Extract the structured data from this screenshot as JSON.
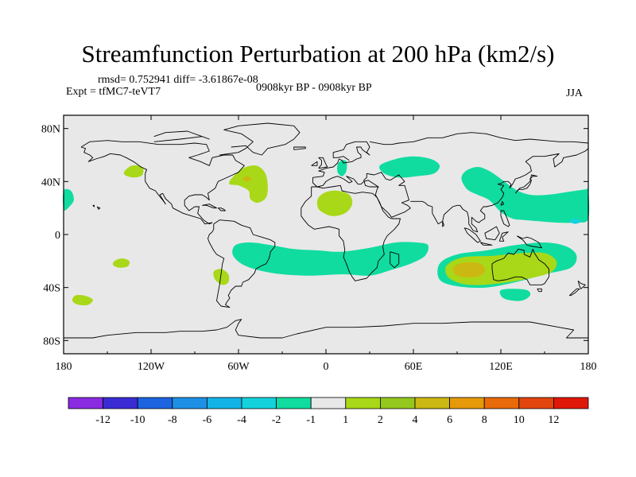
{
  "title": "Streamfunction Perturbation at 200 hPa (km2/s)",
  "stats": "rmsd= 0.752941 diff= -3.61867e-08",
  "experiment": "Expt = tfMC7-teVT7",
  "period": "0908kyr BP - 0908kyr BP",
  "season": "JJA",
  "colors": {
    "background": "#e8e8e8",
    "coast": "#000000",
    "frame": "#000000"
  },
  "chart_data": {
    "type": "heatmap",
    "title": "Streamfunction Perturbation at 200 hPa (km2/s)",
    "xlim": [
      -180,
      180
    ],
    "ylim": [
      -90,
      90
    ],
    "xticks": [
      {
        "value": -180,
        "label": "180"
      },
      {
        "value": -120,
        "label": "120W"
      },
      {
        "value": -60,
        "label": "60W"
      },
      {
        "value": 0,
        "label": "0"
      },
      {
        "value": 60,
        "label": "60E"
      },
      {
        "value": 120,
        "label": "120E"
      },
      {
        "value": 180,
        "label": "180"
      }
    ],
    "yticks": [
      {
        "value": 80,
        "label": "80N"
      },
      {
        "value": 40,
        "label": "40N"
      },
      {
        "value": 0,
        "label": "0"
      },
      {
        "value": -40,
        "label": "40S"
      },
      {
        "value": -80,
        "label": "80S"
      }
    ],
    "colorbar": {
      "colors": [
        "#8a2be2",
        "#3a2bd4",
        "#1c64e0",
        "#1e90e6",
        "#12b4e8",
        "#14d2dc",
        "#10dca0",
        "#e8e8e8",
        "#a8d818",
        "#94c81e",
        "#ccb812",
        "#e69a0a",
        "#e86a0a",
        "#e2460e",
        "#e01808"
      ],
      "labels": [
        "-12",
        "-10",
        "-8",
        "-6",
        "-4",
        "-2",
        "-1",
        "1",
        "2",
        "4",
        "6",
        "8",
        "10",
        "12"
      ]
    },
    "regions": [
      {
        "level": 1,
        "color": "#a8d818",
        "points": [
          [
            -65,
            42
          ],
          [
            -57,
            50
          ],
          [
            -48,
            52
          ],
          [
            -42,
            47
          ],
          [
            -40,
            38
          ],
          [
            -41,
            28
          ],
          [
            -47,
            24
          ],
          [
            -52,
            27
          ],
          [
            -53,
            33
          ],
          [
            -60,
            37
          ],
          [
            -66,
            38
          ]
        ]
      },
      {
        "level": 1,
        "color": "#a8d818",
        "points": [
          [
            -138,
            48
          ],
          [
            -133,
            52
          ],
          [
            -126,
            51
          ],
          [
            -126,
            45
          ],
          [
            -132,
            43
          ],
          [
            -138,
            45
          ]
        ]
      },
      {
        "level": -1,
        "color": "#10dca0",
        "points": [
          [
            -180,
            33
          ],
          [
            -175,
            33
          ],
          [
            -173,
            26
          ],
          [
            -177,
            20
          ],
          [
            -180,
            19
          ]
        ]
      },
      {
        "level": 1,
        "color": "#a8d818",
        "points": [
          [
            -5,
            28
          ],
          [
            0,
            32
          ],
          [
            8,
            33
          ],
          [
            16,
            30
          ],
          [
            18,
            23
          ],
          [
            13,
            16
          ],
          [
            4,
            14
          ],
          [
            -4,
            18
          ],
          [
            -6,
            23
          ]
        ]
      },
      {
        "level": -1,
        "color": "#10dca0",
        "points": [
          [
            8,
            53
          ],
          [
            11,
            56
          ],
          [
            14,
            55
          ],
          [
            14,
            48
          ],
          [
            11,
            44
          ],
          [
            8,
            47
          ]
        ]
      },
      {
        "level": -1,
        "color": "#10dca0",
        "points": [
          [
            37,
            52
          ],
          [
            48,
            57
          ],
          [
            60,
            59
          ],
          [
            72,
            57
          ],
          [
            78,
            52
          ],
          [
            74,
            46
          ],
          [
            62,
            44
          ],
          [
            50,
            43
          ],
          [
            40,
            46
          ]
        ]
      },
      {
        "level": -1,
        "color": "#10dca0",
        "points": [
          [
            93,
            42
          ],
          [
            96,
            48
          ],
          [
            104,
            51
          ],
          [
            112,
            48
          ],
          [
            120,
            42
          ],
          [
            130,
            34
          ],
          [
            140,
            30
          ],
          [
            152,
            30
          ],
          [
            165,
            32
          ],
          [
            178,
            34
          ],
          [
            180,
            34
          ],
          [
            180,
            12
          ],
          [
            172,
            9
          ],
          [
            158,
            9
          ],
          [
            146,
            10
          ],
          [
            136,
            11
          ],
          [
            128,
            12
          ],
          [
            120,
            17
          ],
          [
            112,
            26
          ],
          [
            104,
            30
          ],
          [
            97,
            34
          ]
        ]
      },
      {
        "level": -1,
        "color": "#10dca0",
        "points": [
          [
            -62,
            -8
          ],
          [
            -52,
            -6
          ],
          [
            -38,
            -8
          ],
          [
            -22,
            -11
          ],
          [
            -5,
            -12
          ],
          [
            10,
            -13
          ],
          [
            30,
            -10
          ],
          [
            48,
            -6
          ],
          [
            62,
            -6
          ],
          [
            70,
            -8
          ],
          [
            68,
            -16
          ],
          [
            58,
            -22
          ],
          [
            44,
            -27
          ],
          [
            30,
            -31
          ],
          [
            12,
            -30
          ],
          [
            -10,
            -31
          ],
          [
            -30,
            -30
          ],
          [
            -46,
            -27
          ],
          [
            -58,
            -22
          ],
          [
            -64,
            -15
          ]
        ]
      },
      {
        "level": -1,
        "color": "#10dca0",
        "points": [
          [
            78,
            -22
          ],
          [
            90,
            -15
          ],
          [
            110,
            -12
          ],
          [
            130,
            -8
          ],
          [
            150,
            -6
          ],
          [
            165,
            -9
          ],
          [
            172,
            -16
          ],
          [
            168,
            -25
          ],
          [
            150,
            -30
          ],
          [
            130,
            -36
          ],
          [
            110,
            -40
          ],
          [
            90,
            -39
          ],
          [
            78,
            -34
          ]
        ]
      },
      {
        "level": 1,
        "color": "#a8d818",
        "points": [
          [
            84,
            -22
          ],
          [
            95,
            -17
          ],
          [
            115,
            -16
          ],
          [
            135,
            -14
          ],
          [
            150,
            -14
          ],
          [
            158,
            -20
          ],
          [
            155,
            -28
          ],
          [
            140,
            -33
          ],
          [
            118,
            -37
          ],
          [
            98,
            -38
          ],
          [
            86,
            -34
          ],
          [
            82,
            -28
          ]
        ]
      },
      {
        "level": 2,
        "color": "#ccb812",
        "points": [
          [
            88,
            -24
          ],
          [
            96,
            -21
          ],
          [
            106,
            -22
          ],
          [
            109,
            -28
          ],
          [
            103,
            -32
          ],
          [
            93,
            -32
          ],
          [
            88,
            -29
          ]
        ]
      },
      {
        "level": -1,
        "color": "#10dca0",
        "points": [
          [
            120,
            -42
          ],
          [
            128,
            -41
          ],
          [
            138,
            -42
          ],
          [
            140,
            -46
          ],
          [
            134,
            -50
          ],
          [
            124,
            -49
          ],
          [
            120,
            -46
          ]
        ]
      },
      {
        "level": 1,
        "color": "#a8d818",
        "points": [
          [
            -145,
            -20
          ],
          [
            -140,
            -18
          ],
          [
            -135,
            -20
          ],
          [
            -136,
            -24
          ],
          [
            -142,
            -25
          ],
          [
            -146,
            -23
          ]
        ]
      },
      {
        "level": 1,
        "color": "#a8d818",
        "points": [
          [
            -77,
            -28
          ],
          [
            -72,
            -26
          ],
          [
            -67,
            -30
          ],
          [
            -67,
            -36
          ],
          [
            -71,
            -38
          ],
          [
            -76,
            -34
          ]
        ]
      },
      {
        "level": 1,
        "color": "#a8d818",
        "points": [
          [
            -172,
            -46
          ],
          [
            -166,
            -46
          ],
          [
            -160,
            -49
          ],
          [
            -163,
            -53
          ],
          [
            -170,
            -53
          ],
          [
            -174,
            -50
          ]
        ]
      },
      {
        "level": 2,
        "color": "#ccb812",
        "points": [
          [
            -57,
            42
          ],
          [
            -54,
            44
          ],
          [
            -51,
            42
          ],
          [
            -54,
            40
          ]
        ]
      },
      {
        "level": -2,
        "color": "#14d2dc",
        "points": [
          [
            167,
            10
          ],
          [
            171,
            12
          ],
          [
            175,
            10
          ],
          [
            171,
            8
          ]
        ]
      }
    ]
  }
}
